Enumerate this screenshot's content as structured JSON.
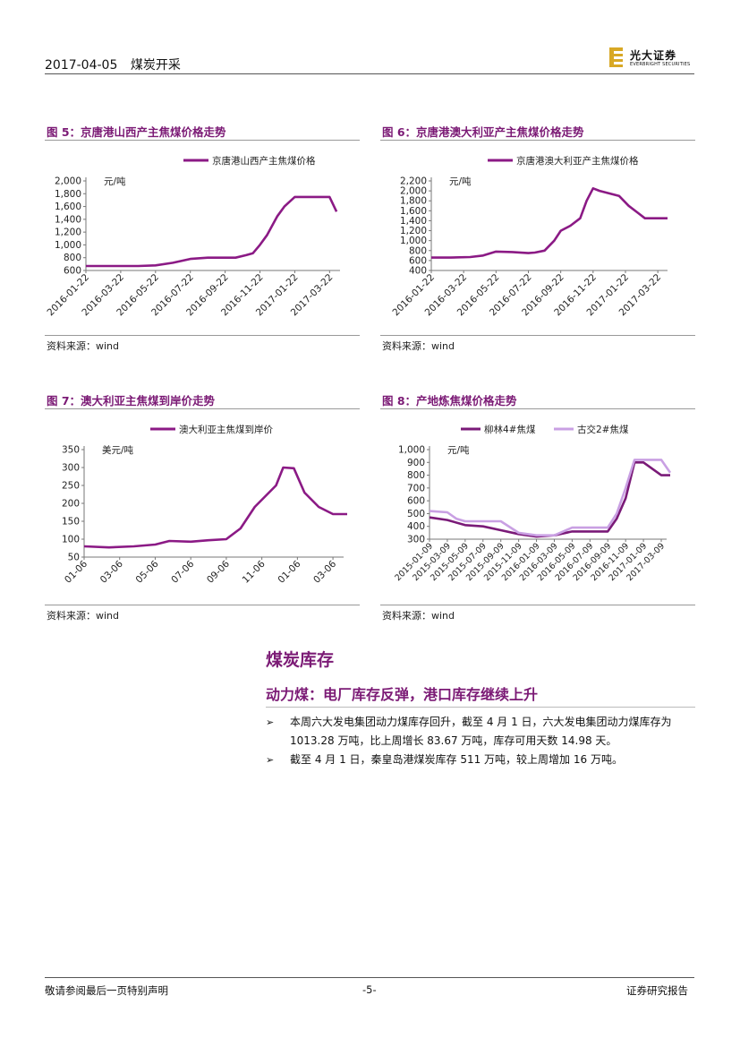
{
  "header": {
    "date": "2017-04-05",
    "category": "煤炭开采"
  },
  "logo": {
    "name": "光大证券",
    "english": "EVERBRIGHT SECURITIES"
  },
  "figures": [
    {
      "title": "图 5：京唐港山西产主焦煤价格走势",
      "source": "资料来源：wind"
    },
    {
      "title": "图 6：京唐港澳大利亚产主焦煤价格走势",
      "source": "资料来源：wind"
    },
    {
      "title": "图 7：澳大利亚主焦煤到岸价走势",
      "source": "资料来源：wind"
    },
    {
      "title": "图 8：产地炼焦煤价格走势",
      "source": "资料来源：wind"
    }
  ],
  "chart_data": [
    {
      "type": "line",
      "title": "京唐港山西产主焦煤价格",
      "ylabel": "元/吨",
      "ylim": [
        600,
        2000
      ],
      "yticks": [
        "2,000",
        "1,800",
        "1,600",
        "1,400",
        "1,200",
        "1,000",
        "800",
        "600"
      ],
      "xticks": [
        "2016-01-22",
        "2016-03-22",
        "2016-05-22",
        "2016-07-22",
        "2016-09-22",
        "2016-11-22",
        "2017-01-22",
        "2017-03-22"
      ],
      "color": "#8b1a85",
      "series": [
        {
          "name": "京唐港山西产主焦煤价格",
          "x": [
            0,
            0.5,
            1,
            1.5,
            2,
            2.5,
            3,
            3.5,
            4,
            4.3,
            4.6,
            4.8,
            5,
            5.2,
            5.5,
            5.7,
            6,
            6.3,
            6.6,
            7,
            7.2
          ],
          "values": [
            670,
            670,
            670,
            670,
            680,
            720,
            780,
            800,
            800,
            800,
            840,
            870,
            1000,
            1150,
            1450,
            1600,
            1750,
            1750,
            1750,
            1750,
            1520
          ]
        }
      ]
    },
    {
      "type": "line",
      "title": "京唐港澳大利亚产主焦煤价格",
      "ylabel": "元/吨",
      "ylim": [
        400,
        2200
      ],
      "yticks": [
        "2,200",
        "2,000",
        "1,800",
        "1,600",
        "1,400",
        "1,200",
        "1,000",
        "800",
        "600",
        "400"
      ],
      "xticks": [
        "2016-01-22",
        "2016-03-22",
        "2016-05-22",
        "2016-07-22",
        "2016-09-22",
        "2016-11-22",
        "2017-01-22",
        "2017-03-22"
      ],
      "color": "#8b1a85",
      "series": [
        {
          "name": "京唐港澳大利亚产主焦煤价格",
          "x": [
            0,
            0.6,
            1.2,
            1.6,
            2,
            2.5,
            3,
            3.2,
            3.5,
            3.8,
            4,
            4.3,
            4.6,
            4.8,
            5,
            5.2,
            5.8,
            6.1,
            6.4,
            6.6,
            7,
            7.3
          ],
          "values": [
            660,
            660,
            670,
            700,
            780,
            770,
            750,
            760,
            800,
            1000,
            1200,
            1300,
            1450,
            1800,
            2050,
            2000,
            1900,
            1700,
            1550,
            1450,
            1450,
            1450
          ]
        }
      ]
    },
    {
      "type": "line",
      "title": "澳大利亚主焦煤到岸价",
      "ylabel": "美元/吨",
      "ylim": [
        50,
        350
      ],
      "yticks": [
        "350",
        "300",
        "250",
        "200",
        "150",
        "100",
        "50"
      ],
      "xticks": [
        "01-06",
        "03-06",
        "05-06",
        "07-06",
        "09-06",
        "11-06",
        "01-06",
        "03-06"
      ],
      "color": "#8b1a85",
      "series": [
        {
          "name": "澳大利亚主焦煤到岸价",
          "x": [
            0,
            0.7,
            1.4,
            2,
            2.4,
            3,
            3.5,
            4,
            4.4,
            4.8,
            5.1,
            5.4,
            5.6,
            5.9,
            6.2,
            6.6,
            7,
            7.4
          ],
          "values": [
            80,
            77,
            80,
            85,
            95,
            93,
            97,
            100,
            130,
            190,
            220,
            250,
            300,
            298,
            230,
            190,
            170,
            170
          ]
        }
      ]
    },
    {
      "type": "line",
      "title": "产地炼焦煤价格",
      "ylabel": "元/吨",
      "ylim": [
        300,
        1000
      ],
      "yticks": [
        "1,000",
        "900",
        "800",
        "700",
        "600",
        "500",
        "400",
        "300"
      ],
      "xticks": [
        "2015-01-09",
        "2015-03-09",
        "2015-05-09",
        "2015-07-09",
        "2015-09-09",
        "2015-11-09",
        "2016-01-09",
        "2016-03-09",
        "2016-05-09",
        "2016-07-09",
        "2016-09-09",
        "2016-11-09",
        "2017-01-09",
        "2017-03-09"
      ],
      "legend": [
        "柳林4#焦煤",
        "古交2#焦煤"
      ],
      "series": [
        {
          "name": "柳林4#焦煤",
          "color": "#7a1a78",
          "x": [
            0,
            1,
            2,
            3,
            4,
            5,
            6,
            7,
            8,
            9,
            10,
            10.5,
            11,
            11.5,
            12,
            13,
            13.5
          ],
          "values": [
            470,
            450,
            410,
            400,
            370,
            340,
            320,
            330,
            360,
            360,
            360,
            460,
            620,
            900,
            900,
            800,
            800
          ]
        },
        {
          "name": "古交2#焦煤",
          "color": "#c9a0e3",
          "x": [
            0,
            1,
            1.5,
            2,
            3,
            4,
            5,
            5.5,
            6,
            7,
            8,
            9,
            10,
            10.5,
            11,
            11.5,
            12,
            13,
            13.5
          ],
          "values": [
            520,
            510,
            460,
            440,
            440,
            440,
            350,
            340,
            330,
            330,
            390,
            390,
            390,
            500,
            700,
            920,
            920,
            920,
            820
          ]
        }
      ]
    }
  ],
  "section": {
    "title": "煤炭库存",
    "subtitle": "动力煤：电厂库存反弹，港口库存继续上升",
    "bullets": [
      "本周六大发电集团动力煤库存回升，截至 4 月 1 日，六大发电集团动力煤库存为 1013.28 万吨，比上周增长 83.67 万吨，库存可用天数 14.98 天。",
      "截至 4 月 1 日，秦皇岛港煤炭库存 511 万吨，较上周增加 16 万吨。"
    ],
    "bullet_marker": "➢"
  },
  "footer": {
    "disclaimer": "敬请参阅最后一页特别声明",
    "page": "-5-",
    "report_type": "证券研究报告"
  }
}
